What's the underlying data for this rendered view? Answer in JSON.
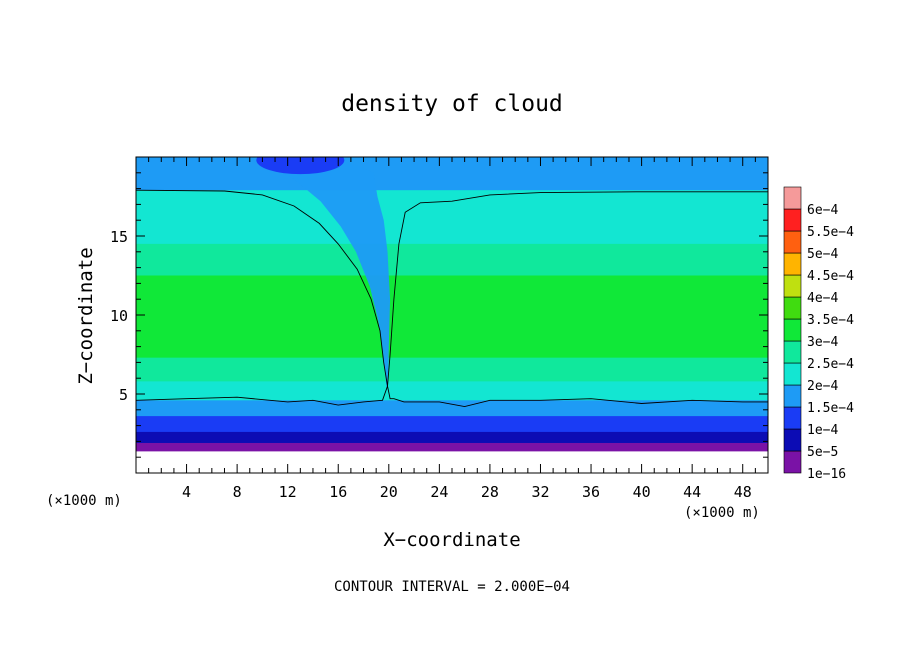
{
  "chart_data": {
    "type": "heatmap",
    "title": "density of cloud",
    "xlabel": "X−coordinate",
    "ylabel": "Z−coordinate",
    "x_unit_label_left": "(×1000 m)",
    "x_unit_label_right": "(×1000 m)",
    "footer": "CONTOUR INTERVAL = 2.000E−04",
    "xlim": [
      0,
      50
    ],
    "ylim": [
      0,
      20
    ],
    "x_ticks": [
      {
        "value": 4,
        "label": "4"
      },
      {
        "value": 8,
        "label": "8"
      },
      {
        "value": 12,
        "label": "12"
      },
      {
        "value": 16,
        "label": "16"
      },
      {
        "value": 20,
        "label": "20"
      },
      {
        "value": 24,
        "label": "24"
      },
      {
        "value": 28,
        "label": "28"
      },
      {
        "value": 32,
        "label": "32"
      },
      {
        "value": 36,
        "label": "36"
      },
      {
        "value": 40,
        "label": "40"
      },
      {
        "value": 44,
        "label": "44"
      },
      {
        "value": 48,
        "label": "48"
      }
    ],
    "y_ticks": [
      {
        "value": 5,
        "label": "5"
      },
      {
        "value": 10,
        "label": "10"
      },
      {
        "value": 15,
        "label": "15"
      }
    ],
    "colorbar": [
      {
        "label": "1e−16",
        "color": "#7a12a6"
      },
      {
        "label": "5e−5",
        "color": "#0c0cb4"
      },
      {
        "label": "1e−4",
        "color": "#1a3cf5"
      },
      {
        "label": "1.5e−4",
        "color": "#1e9bf5"
      },
      {
        "label": "2e−4",
        "color": "#13e6d2"
      },
      {
        "label": "2.5e−4",
        "color": "#10e89c"
      },
      {
        "label": "3e−4",
        "color": "#10e838"
      },
      {
        "label": "3.5e−4",
        "color": "#40dc10"
      },
      {
        "label": "4e−4",
        "color": "#bfe010"
      },
      {
        "label": "4.5e−4",
        "color": "#ffb400"
      },
      {
        "label": "5e−4",
        "color": "#ff6010"
      },
      {
        "label": "5.5e−4",
        "color": "#ff2020"
      },
      {
        "label": "6e−4",
        "color": "#f59a9a"
      }
    ],
    "field_bands": [
      {
        "z_top": 20.0,
        "z_bottom": 17.9,
        "value_level": "1.5e−4"
      },
      {
        "z_top": 17.9,
        "z_bottom": 14.5,
        "value_level": "2e−4"
      },
      {
        "z_top": 14.5,
        "z_bottom": 12.5,
        "value_level": "2.5e−4"
      },
      {
        "z_top": 12.5,
        "z_bottom": 7.3,
        "value_level": "3e−4"
      },
      {
        "z_top": 7.3,
        "z_bottom": 5.8,
        "value_level": "2.5e−4"
      },
      {
        "z_top": 5.8,
        "z_bottom": 4.6,
        "value_level": "2e−4"
      },
      {
        "z_top": 4.6,
        "z_bottom": 3.6,
        "value_level": "1.5e−4"
      },
      {
        "z_top": 3.6,
        "z_bottom": 2.6,
        "value_level": "1e−4"
      },
      {
        "z_top": 2.6,
        "z_bottom": 1.9,
        "value_level": "5e−5"
      },
      {
        "z_top": 1.9,
        "z_bottom": 1.4,
        "value_level": "1e−16"
      }
    ],
    "contour_top": [
      [
        0,
        17.9
      ],
      [
        7,
        17.85
      ],
      [
        10,
        17.6
      ],
      [
        12.5,
        16.9
      ],
      [
        14.5,
        15.8
      ],
      [
        16,
        14.5
      ],
      [
        17.5,
        12.9
      ],
      [
        18.6,
        11
      ],
      [
        19.3,
        9
      ],
      [
        19.6,
        7
      ],
      [
        19.9,
        5.5
      ],
      [
        20.1,
        4.7
      ],
      [
        20.4,
        4.7
      ],
      [
        21.2,
        4.5
      ],
      [
        24,
        4.5
      ],
      [
        26,
        4.2
      ],
      [
        28,
        4.6
      ],
      [
        32,
        4.6
      ],
      [
        36,
        4.7
      ],
      [
        40,
        4.4
      ],
      [
        44,
        4.6
      ],
      [
        48,
        4.5
      ],
      [
        50,
        4.5
      ]
    ],
    "contour_left": [
      [
        0,
        4.6
      ],
      [
        4,
        4.7
      ],
      [
        8,
        4.8
      ],
      [
        12,
        4.5
      ],
      [
        14,
        4.6
      ],
      [
        16,
        4.3
      ],
      [
        18,
        4.5
      ],
      [
        19.5,
        4.6
      ],
      [
        19.9,
        5.5
      ],
      [
        20.1,
        7.5
      ],
      [
        20.4,
        11
      ],
      [
        20.8,
        14.5
      ],
      [
        21.3,
        16.5
      ],
      [
        22.5,
        17.1
      ],
      [
        25,
        17.2
      ],
      [
        28,
        17.6
      ],
      [
        32,
        17.75
      ],
      [
        40,
        17.8
      ],
      [
        50,
        17.8
      ]
    ],
    "wedge": [
      [
        10,
        20
      ],
      [
        16,
        20
      ],
      [
        18.8,
        19
      ],
      [
        19.1,
        17.5
      ],
      [
        19.6,
        16
      ],
      [
        19.9,
        14
      ],
      [
        20.1,
        11
      ],
      [
        20.0,
        8
      ],
      [
        19.95,
        6
      ],
      [
        19.85,
        5.2
      ],
      [
        19.6,
        7
      ],
      [
        19.2,
        9.5
      ],
      [
        18.5,
        11.8
      ],
      [
        17.4,
        14
      ],
      [
        16.2,
        15.6
      ],
      [
        14.6,
        17.2
      ],
      [
        12.5,
        18.6
      ],
      [
        10,
        19.7
      ]
    ]
  }
}
